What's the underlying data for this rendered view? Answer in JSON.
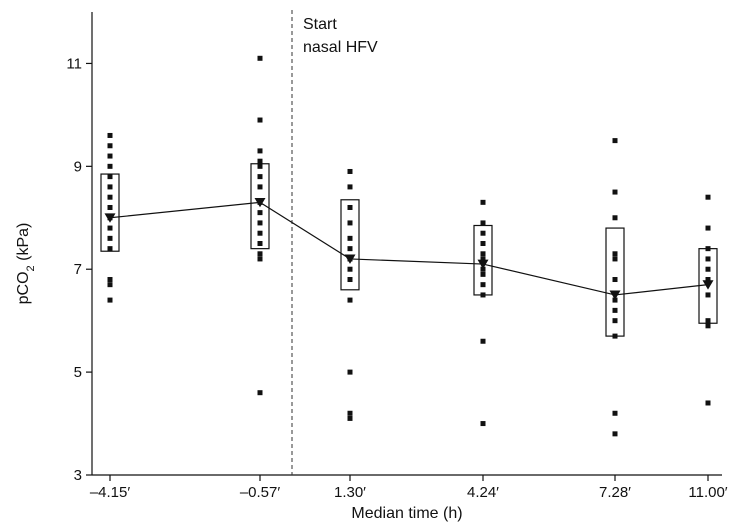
{
  "chart_data": {
    "type": "scatter",
    "title": "",
    "xlabel": "Median time (h)",
    "ylabel_main": "pCO",
    "ylabel_sub": "2",
    "ylabel_unit": " (kPa)",
    "ylim": [
      3,
      12
    ],
    "yticks": [
      3,
      5,
      7,
      9,
      11
    ],
    "categories": [
      "–4.15′",
      "–0.57′",
      "1.30′",
      "4.24′",
      "7.28′",
      "11.00′"
    ],
    "annotation": [
      "Start",
      "nasal HFV"
    ],
    "median_line": [
      8.0,
      8.3,
      7.2,
      7.1,
      6.5,
      6.7
    ],
    "boxes": [
      {
        "low": 7.35,
        "high": 8.85
      },
      {
        "low": 7.4,
        "high": 9.05
      },
      {
        "low": 6.6,
        "high": 8.35
      },
      {
        "low": 6.5,
        "high": 7.85
      },
      {
        "low": 5.7,
        "high": 7.8
      },
      {
        "low": 5.95,
        "high": 7.4
      }
    ],
    "points": [
      [
        9.6,
        9.4,
        9.2,
        9.0,
        8.8,
        8.6,
        8.4,
        8.2,
        8.0,
        7.8,
        7.6,
        7.4,
        6.8,
        6.7,
        6.4
      ],
      [
        11.1,
        9.9,
        9.3,
        9.1,
        9.0,
        8.8,
        8.6,
        8.3,
        8.1,
        7.9,
        7.7,
        7.5,
        7.3,
        7.2,
        4.6
      ],
      [
        8.9,
        8.6,
        8.2,
        7.9,
        7.6,
        7.4,
        7.2,
        7.0,
        6.8,
        6.4,
        5.0,
        4.2,
        4.1
      ],
      [
        8.3,
        7.9,
        7.7,
        7.5,
        7.3,
        7.2,
        7.0,
        6.9,
        6.7,
        6.5,
        5.6,
        4.0
      ],
      [
        9.5,
        8.5,
        8.0,
        7.3,
        7.2,
        6.8,
        6.4,
        6.2,
        6.0,
        5.7,
        4.2,
        3.8
      ],
      [
        8.4,
        7.8,
        7.4,
        7.2,
        7.0,
        6.8,
        6.5,
        6.0,
        5.9,
        4.4
      ]
    ],
    "grid": false,
    "legend": "none",
    "colors": {
      "marks": "#111111",
      "divider": "#333333",
      "background": "#ffffff"
    }
  }
}
